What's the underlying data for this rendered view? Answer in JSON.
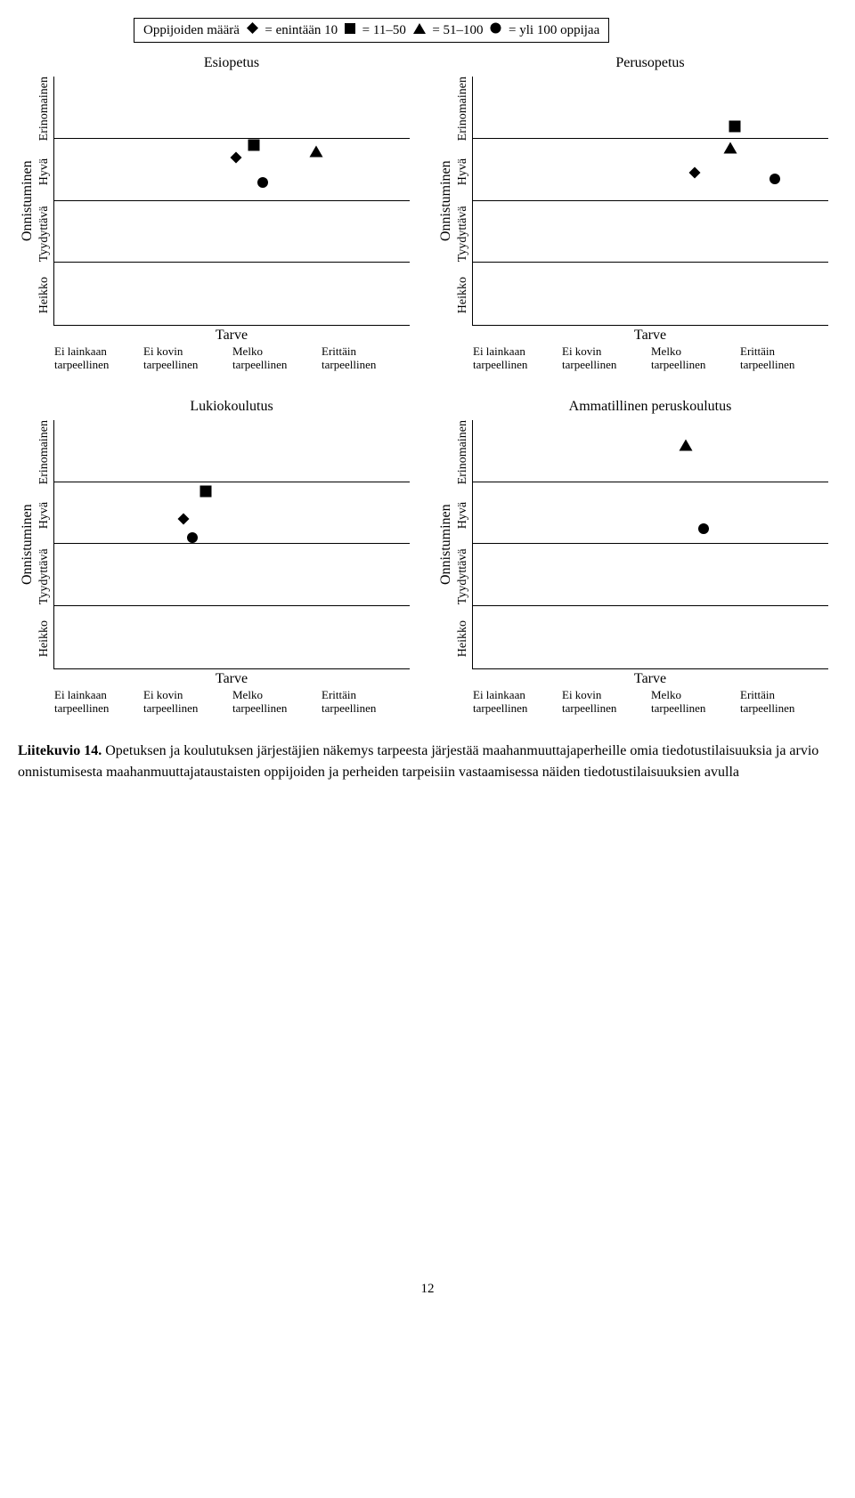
{
  "legend": {
    "prefix": "Oppijoiden määrä",
    "items": [
      {
        "symbol": "diamond",
        "label": "= enintään 10"
      },
      {
        "symbol": "square",
        "label": "= 11–50"
      },
      {
        "symbol": "triangle",
        "label": "= 51–100"
      },
      {
        "symbol": "circle",
        "label": "= yli 100 oppijaa"
      }
    ]
  },
  "marker_color": "#000000",
  "marker_size": 13,
  "y_axis": {
    "outer_label": "Onnistuminen",
    "ticks": [
      "Heikko",
      "Tyydyttävä",
      "Hyvä",
      "Erinomainen"
    ]
  },
  "x_axis": {
    "label": "Tarve",
    "ticks": [
      {
        "l1": "Ei lainkaan",
        "l2": "tarpeellinen"
      },
      {
        "l1": "Ei kovin",
        "l2": "tarpeellinen"
      },
      {
        "l1": "Melko",
        "l2": "tarpeellinen"
      },
      {
        "l1": "Erittäin",
        "l2": "tarpeellinen"
      }
    ]
  },
  "xlim": [
    0,
    4
  ],
  "ylim": [
    0,
    4
  ],
  "panels": [
    {
      "title": "Esiopetus",
      "points": [
        {
          "marker": "square",
          "x": 2.25,
          "y": 2.9
        },
        {
          "marker": "diamond",
          "x": 2.05,
          "y": 2.7
        },
        {
          "marker": "triangle",
          "x": 2.95,
          "y": 2.8
        },
        {
          "marker": "circle",
          "x": 2.35,
          "y": 2.3
        }
      ]
    },
    {
      "title": "Perusopetus",
      "points": [
        {
          "marker": "square",
          "x": 2.95,
          "y": 3.2
        },
        {
          "marker": "triangle",
          "x": 2.9,
          "y": 2.85
        },
        {
          "marker": "diamond",
          "x": 2.5,
          "y": 2.45
        },
        {
          "marker": "circle",
          "x": 3.4,
          "y": 2.35
        }
      ]
    },
    {
      "title": "Lukiokoulutus",
      "points": [
        {
          "marker": "square",
          "x": 1.7,
          "y": 2.85
        },
        {
          "marker": "diamond",
          "x": 1.45,
          "y": 2.4
        },
        {
          "marker": "circle",
          "x": 1.55,
          "y": 2.1
        }
      ]
    },
    {
      "title": "Ammatillinen peruskoulutus",
      "points": [
        {
          "marker": "triangle",
          "x": 2.4,
          "y": 3.6
        },
        {
          "marker": "circle",
          "x": 2.6,
          "y": 2.25
        }
      ]
    }
  ],
  "caption": {
    "label": "Liitekuvio 14.",
    "text": "Opetuksen ja koulutuksen järjestäjien näkemys tarpeesta järjestää maahanmuuttajaperheille omia tiedotustilaisuuksia ja arvio onnistumisesta maahanmuuttajataustaisten oppijoiden ja perheiden tarpeisiin vastaamisessa näiden tiedotustilaisuuksien avulla"
  },
  "page_number": "12"
}
